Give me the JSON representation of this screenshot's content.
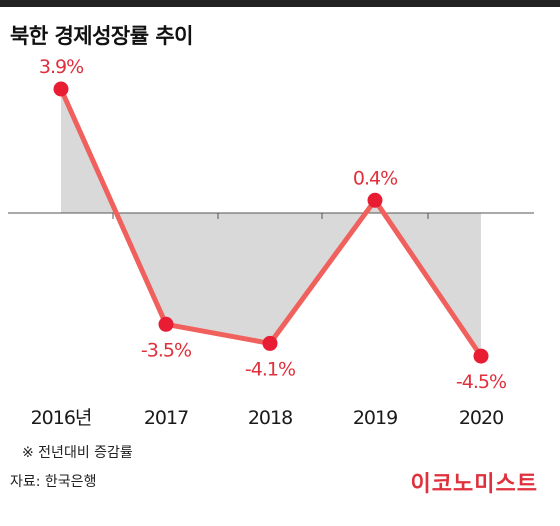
{
  "title": "북한 경제성장률 추이",
  "footnote": "※ 전년대비 증감률",
  "source": "자료: 한국은행",
  "brand": "이코노미스트",
  "colors": {
    "line": "#f0605c",
    "point": "#e81d34",
    "label": "#e0303c",
    "fill": "#d9d9d9",
    "baseline": "#555555",
    "top_bar": "#222222"
  },
  "chart_data": {
    "type": "line",
    "categories": [
      "2016년",
      "2017",
      "2018",
      "2019",
      "2020"
    ],
    "values": [
      3.9,
      -3.5,
      -4.1,
      0.4,
      -4.5
    ],
    "labels": [
      "3.9%",
      "-3.5%",
      "-4.1%",
      "0.4%",
      "-4.5%"
    ],
    "title": "북한 경제성장률 추이",
    "xlabel": "",
    "ylabel": "",
    "grid": false,
    "area_to_zero": true
  }
}
